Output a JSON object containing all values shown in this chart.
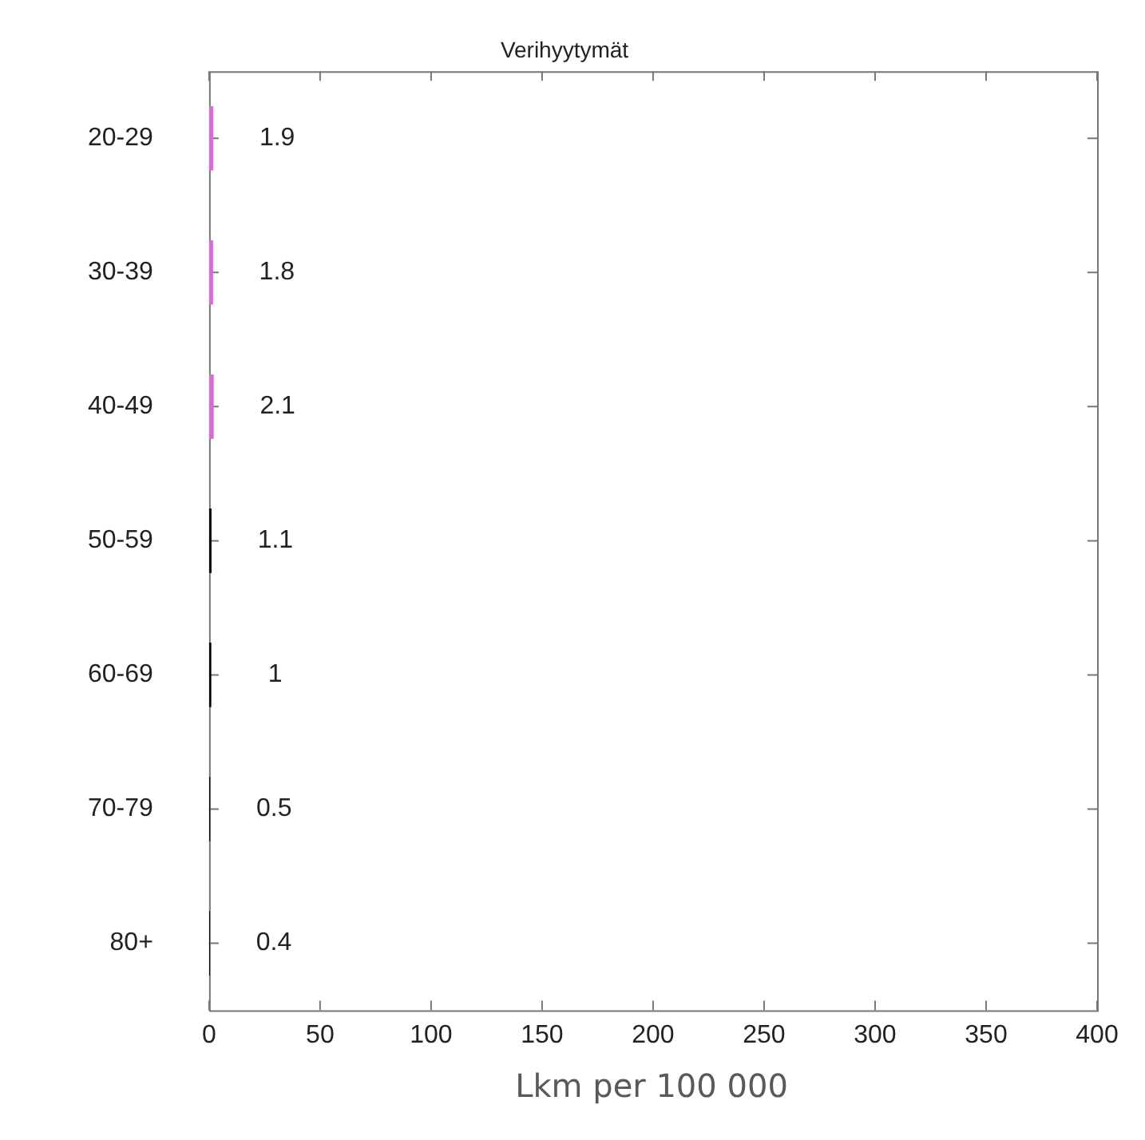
{
  "chart_data": {
    "type": "bar",
    "orientation": "horizontal",
    "title": "Verihyytymät",
    "xlabel": "Lkm per 100 000",
    "categories": [
      "20-29",
      "30-39",
      "40-49",
      "50-59",
      "60-69",
      "70-79",
      "80+"
    ],
    "values": [
      1.9,
      1.8,
      2.1,
      1.1,
      1,
      0.5,
      0.4
    ],
    "colors": [
      "#d070d0",
      "#d070d0",
      "#d070d0",
      "#000000",
      "#000000",
      "#000000",
      "#000000"
    ],
    "xlim": [
      0,
      400
    ],
    "xticks": [
      0,
      50,
      100,
      150,
      200,
      250,
      300,
      350,
      400
    ],
    "data_labels": true,
    "grid": false,
    "legend": false
  }
}
